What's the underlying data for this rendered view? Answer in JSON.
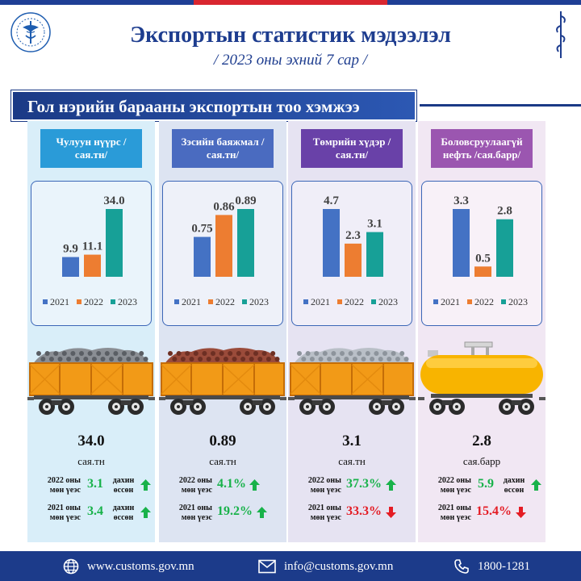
{
  "header": {
    "title": "Экспортын статистик мэдээлэл",
    "subtitle": "/ 2023 оны эхний  7 сар /"
  },
  "banner": {
    "text": "Гол нэрийн барааны экспортын тоо хэмжээ"
  },
  "legend": {
    "y1": "2021",
    "y2": "2022",
    "y3": "2023"
  },
  "colors": {
    "y2021": "#4472c4",
    "y2022": "#ed7d31",
    "y2023": "#17a097"
  },
  "chart_data": [
    {
      "type": "bar",
      "title": "Чулуун нүүрс /сая.тн/",
      "categories": [
        "2021",
        "2022",
        "2023"
      ],
      "values": [
        9.9,
        11.1,
        34.0
      ],
      "value_labels": [
        "9.9",
        "11.1",
        "34.0"
      ],
      "ylim": [
        0,
        34.0
      ]
    },
    {
      "type": "bar",
      "title": "Зэсийн баяжмал /сая.тн/",
      "categories": [
        "2021",
        "2022",
        "2023"
      ],
      "values": [
        0.75,
        0.86,
        0.89
      ],
      "value_labels": [
        "0.75",
        "0.86",
        "0.89"
      ],
      "ylim": [
        0.55,
        0.89
      ]
    },
    {
      "type": "bar",
      "title": "Төмрийн хүдэр /сая.тн/",
      "categories": [
        "2021",
        "2022",
        "2023"
      ],
      "values": [
        4.7,
        2.3,
        3.1
      ],
      "value_labels": [
        "4.7",
        "2.3",
        "3.1"
      ],
      "ylim": [
        0,
        4.7
      ]
    },
    {
      "type": "bar",
      "title": "Боловсруулаагүй нефть /сая.барр/",
      "categories": [
        "2021",
        "2022",
        "2023"
      ],
      "values": [
        3.3,
        0.5,
        2.8
      ],
      "value_labels": [
        "3.3",
        "0.5",
        "2.8"
      ],
      "ylim": [
        0,
        3.3
      ]
    }
  ],
  "products": [
    {
      "label": "Чулуун нүүрс /сая.тн/",
      "cargo": "coal",
      "value": "34.0",
      "unit": "сая.тн",
      "cmp": [
        {
          "year": "2022 оны мөн үеэс",
          "value": "3.1",
          "note": "дахин өссөн",
          "dir": "up"
        },
        {
          "year": "2021 оны мөн үеэс",
          "value": "3.4",
          "note": "дахин өссөн",
          "dir": "up"
        }
      ]
    },
    {
      "label": "Зэсийн баяжмал /сая.тн/",
      "cargo": "copper",
      "value": "0.89",
      "unit": "сая.тн",
      "cmp": [
        {
          "year": "2022 оны мөн үеэс",
          "value": "4.1%",
          "note": "",
          "dir": "up"
        },
        {
          "year": "2021 оны мөн үеэс",
          "value": "19.2%",
          "note": "",
          "dir": "up"
        }
      ]
    },
    {
      "label": "Төмрийн хүдэр /сая.тн/",
      "cargo": "iron",
      "value": "3.1",
      "unit": "сая.тн",
      "cmp": [
        {
          "year": "2022 оны мөн үеэс",
          "value": "37.3%",
          "note": "",
          "dir": "up"
        },
        {
          "year": "2021 оны мөн үеэс",
          "value": "33.3%",
          "note": "",
          "dir": "down"
        }
      ]
    },
    {
      "label": "Боловсруулаагүй нефть /сая.барр/",
      "cargo": "oil",
      "value": "2.8",
      "unit": "сая.барр",
      "cmp": [
        {
          "year": "2022 оны мөн үеэс",
          "value": "5.9",
          "note": "дахин өссөн",
          "dir": "up"
        },
        {
          "year": "2021 оны мөн үеэс",
          "value": "15.4%",
          "note": "",
          "dir": "down"
        }
      ]
    }
  ],
  "footer": {
    "website": "www.customs.gov.mn",
    "email": "info@customs.gov.mn",
    "phone": "1800-1281"
  },
  "icons": {
    "logo": "customs-emblem-icon",
    "script": "mongolian-script-icon",
    "web": "globe-icon",
    "mail": "envelope-icon",
    "phone": "phone-icon",
    "up": "arrow-up-icon",
    "down": "arrow-down-icon"
  }
}
